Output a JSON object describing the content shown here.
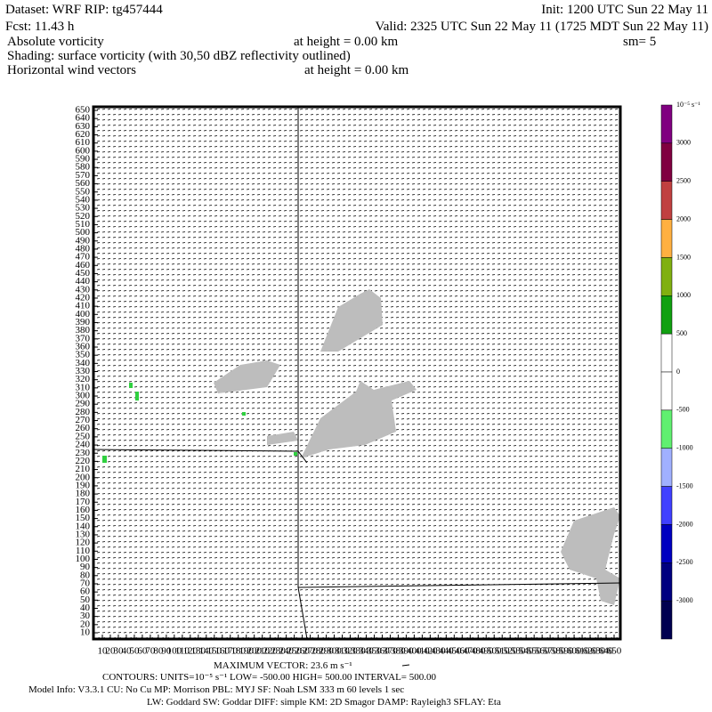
{
  "header": {
    "dataset": "Dataset: WRF  RIP: tg457444",
    "init": "Init: 1200 UTC Sun 22 May 11",
    "fcst": "Fcst:   11.43 h",
    "valid": "Valid: 2325 UTC Sun 22 May 11 (1725 MDT Sun 22 May 11)",
    "field1": "Absolute vorticity",
    "field1_height": "at height =  0.00 km",
    "smooth": "sm= 5",
    "shading": "Shading: surface vorticity (with 30,50 dBZ reflectivity outlined)",
    "field2": "Horizontal wind vectors",
    "field2_height": "at height =  0.00 km"
  },
  "plot": {
    "yticks": [
      10,
      20,
      30,
      40,
      50,
      60,
      70,
      80,
      90,
      100,
      110,
      120,
      130,
      140,
      150,
      160,
      170,
      180,
      190,
      200,
      210,
      220,
      230,
      240,
      250,
      260,
      270,
      280,
      290,
      300,
      310,
      320,
      330,
      340,
      350,
      360,
      370,
      380,
      390,
      400,
      410,
      420,
      430,
      440,
      450,
      460,
      470,
      480,
      490,
      500,
      510,
      520,
      530,
      540,
      550,
      560,
      570,
      580,
      590,
      600,
      610,
      620,
      630,
      640,
      650
    ],
    "xticks": [
      10,
      20,
      30,
      40,
      50,
      60,
      70,
      80,
      90,
      100,
      110,
      120,
      130,
      140,
      150,
      160,
      170,
      180,
      190,
      200,
      210,
      220,
      230,
      240,
      250,
      260,
      270,
      280,
      290,
      300,
      310,
      320,
      330,
      340,
      350,
      360,
      370,
      380,
      390,
      400,
      410,
      420,
      430,
      440,
      450,
      460,
      470,
      480,
      490,
      500,
      510,
      520,
      530,
      540,
      550,
      560,
      570,
      580,
      590,
      600,
      610,
      620,
      630,
      640,
      650
    ],
    "lim": [
      10,
      650
    ]
  },
  "colorbar": {
    "unit": "10⁻⁵ s⁻¹",
    "labels": [
      3000,
      2500,
      2000,
      1500,
      1000,
      500,
      0,
      -500,
      -1000,
      -1500,
      -2000,
      -2500,
      -3000
    ],
    "colors": [
      "#800080",
      "#800040",
      "#c04040",
      "#ffb040",
      "#80b010",
      "#10a010",
      "#ffffff",
      "#ffffff",
      "#60f070",
      "#a0b0ff",
      "#4040ff",
      "#0000c0",
      "#000080",
      "#000050"
    ]
  },
  "footer": {
    "max_vector": "MAXIMUM VECTOR:  23.6 m s⁻¹",
    "contours": "CONTOURS:  UNITS=10⁻⁵ s⁻¹  LOW= -500.00   HIGH=  500.00   INTERVAL=   500.00",
    "model_info": "Model Info: V3.3.1   CU: No Cu    MP: Morrison    PBL: MYJ     SF: Noah LSM    333 m    60 levels    1 sec",
    "physics": "LW: Goddard SW: Goddar DIFF: simple KM: 2D Smagor DAMP: Rayleigh3  SFLAY: Eta"
  }
}
